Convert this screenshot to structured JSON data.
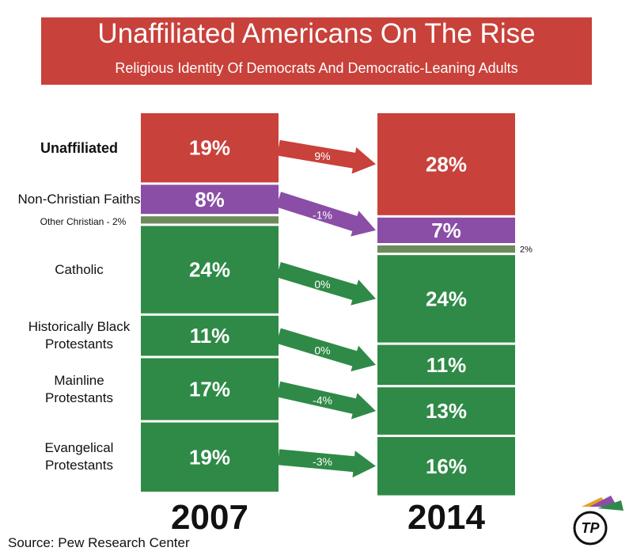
{
  "chart_data": {
    "type": "stacked-flow",
    "title": "Unaffiliated Americans On The Rise",
    "subtitle": "Religious Identity Of Democrats And Democratic-Leaning Adults",
    "title_color": "#c8413a",
    "categories": [
      "2007",
      "2014"
    ],
    "series": [
      {
        "name": "Unaffiliated",
        "color": "#c8413a",
        "values": [
          19,
          28
        ],
        "value_labels": [
          "19%",
          "28%"
        ],
        "change": 9,
        "change_label": "9%"
      },
      {
        "name": "Non-Christian Faiths",
        "color": "#8a4ea6",
        "values": [
          8,
          7
        ],
        "value_labels": [
          "8%",
          "7%"
        ],
        "change": -1,
        "change_label": "-1%"
      },
      {
        "name": "Other Christian - 2%",
        "color": "#6d8a5d",
        "values": [
          2,
          2
        ],
        "value_labels": [
          null,
          "2%"
        ]
      },
      {
        "name": "Catholic",
        "color": "#2f8a47",
        "values": [
          24,
          24
        ],
        "value_labels": [
          "24%",
          "24%"
        ],
        "change": 0,
        "change_label": "0%"
      },
      {
        "name": "Historically Black Protestants",
        "color": "#2f8a47",
        "values": [
          11,
          11
        ],
        "value_labels": [
          "11%",
          "11%"
        ],
        "change": 0,
        "change_label": "0%"
      },
      {
        "name": "Mainline Protestants",
        "color": "#2f8a47",
        "values": [
          17,
          13
        ],
        "value_labels": [
          "17%",
          "13%"
        ],
        "change": -4,
        "change_label": "-4%"
      },
      {
        "name": "Evangelical Protestants",
        "color": "#2f8a47",
        "values": [
          19,
          16
        ],
        "value_labels": [
          "19%",
          "16%"
        ],
        "change": -3,
        "change_label": "-3%"
      }
    ],
    "source": "Source: Pew Research Center",
    "logo": "TP"
  }
}
